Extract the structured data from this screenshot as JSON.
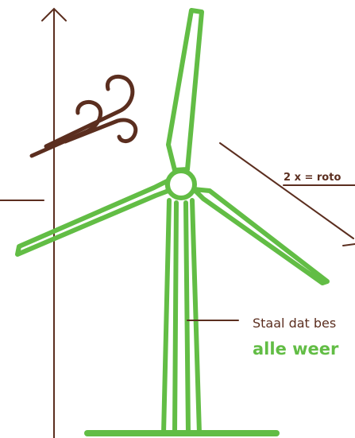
{
  "labels": {
    "rotor": "2 x = roto",
    "steel_line1": "Staal dat bes",
    "steel_line2": "alle weer"
  }
}
